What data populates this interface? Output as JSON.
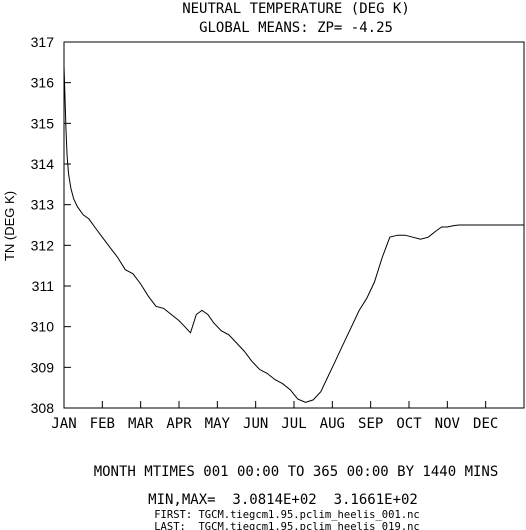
{
  "chart_data": {
    "type": "line",
    "title": "NEUTRAL TEMPERATURE (DEG K)",
    "subtitle": "GLOBAL MEANS: ZP= -4.25",
    "xlabel": "MONTH MTIMES 001 00:00 TO 365 00:00 BY 1440 MINS",
    "ylabel": "TN (DEG K)",
    "ylim": [
      308,
      317
    ],
    "xlim": [
      0,
      12
    ],
    "yticks": [
      "308",
      "309",
      "310",
      "311",
      "312",
      "313",
      "314",
      "315",
      "316",
      "317"
    ],
    "xticks": [
      "JAN",
      "FEB",
      "MAR",
      "APR",
      "MAY",
      "JUN",
      "JUL",
      "AUG",
      "SEP",
      "OCT",
      "NOV",
      "DEC"
    ],
    "grid": false,
    "series": [
      {
        "x": [
          0.0,
          0.02,
          0.05,
          0.08,
          0.12,
          0.18,
          0.25,
          0.35,
          0.5,
          0.65,
          0.8,
          1.0,
          1.2,
          1.4,
          1.6,
          1.8,
          2.0,
          2.2,
          2.4,
          2.6,
          2.8,
          3.0,
          3.15,
          3.3,
          3.45,
          3.6,
          3.75,
          3.9,
          4.1,
          4.3,
          4.5,
          4.7,
          4.9,
          5.1,
          5.3,
          5.5,
          5.7,
          5.9,
          6.1,
          6.3,
          6.5,
          6.7,
          6.85,
          6.95,
          7.05,
          7.15,
          7.3,
          7.5,
          7.7,
          7.9,
          8.1,
          8.3,
          8.5,
          8.7,
          8.9,
          9.1,
          9.3,
          9.5,
          9.7,
          9.85,
          10.0,
          10.15,
          10.3,
          10.5,
          10.7,
          10.9,
          11.1,
          11.3,
          11.5,
          11.7,
          12.0
        ],
        "y": [
          316.4,
          315.8,
          314.9,
          314.2,
          313.75,
          313.4,
          313.15,
          312.95,
          312.75,
          312.65,
          312.45,
          312.2,
          311.95,
          311.7,
          311.4,
          311.3,
          311.05,
          310.75,
          310.5,
          310.45,
          310.3,
          310.15,
          310.0,
          309.85,
          310.3,
          310.4,
          310.3,
          310.1,
          309.9,
          309.8,
          309.6,
          309.4,
          309.15,
          308.95,
          308.85,
          308.7,
          308.6,
          308.45,
          308.22,
          308.14,
          308.2,
          308.4,
          308.7,
          308.9,
          309.1,
          309.3,
          309.6,
          310.0,
          310.4,
          310.7,
          311.1,
          311.7,
          312.2,
          312.25,
          312.25,
          312.2,
          312.15,
          312.2,
          312.35,
          312.45,
          312.45,
          312.48,
          312.5,
          312.5,
          312.5,
          312.5,
          312.5,
          312.5,
          312.5,
          312.5,
          312.5
        ]
      }
    ]
  },
  "footer": {
    "minmax": "MIN,MAX=  3.0814E+02  3.1661E+02",
    "first": "FIRST: TGCM.tiegcm1.95.pclim_heelis_001.nc",
    "last": "LAST:  TGCM.tiegcm1.95.pclim_heelis_019.nc"
  }
}
